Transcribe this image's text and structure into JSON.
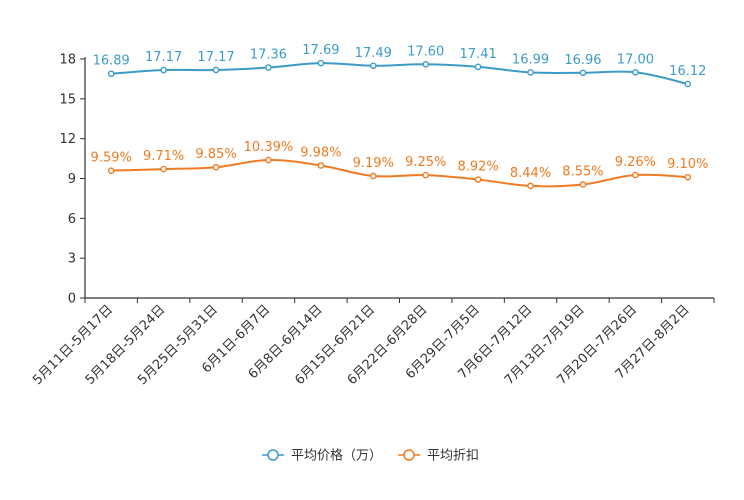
{
  "chart_data": {
    "type": "line",
    "title": "",
    "xlabel": "",
    "ylabel": "",
    "ylim": [
      0,
      18
    ],
    "yticks": [
      0,
      3,
      6,
      9,
      12,
      15,
      18
    ],
    "grid": false,
    "legend": "bottom-center",
    "categories": [
      "5月11日-5月17日",
      "5月18日-5月24日",
      "5月25日-5月31日",
      "6月1日-6月7日",
      "6月8日-6月14日",
      "6月15日-6月21日",
      "6月22日-6月28日",
      "6月29日-7月5日",
      "7月6日-7月12日",
      "7月13日-7月19日",
      "7月20日-7月26日",
      "7月27日-8月2日"
    ],
    "series": [
      {
        "name": "平均价格（万）",
        "color": "#3d9bc8",
        "values": [
          16.89,
          17.17,
          17.17,
          17.36,
          17.69,
          17.49,
          17.6,
          17.41,
          16.99,
          16.96,
          17.0,
          16.12
        ],
        "labels": [
          "16.89",
          "17.17",
          "17.17",
          "17.36",
          "17.69",
          "17.49",
          "17.60",
          "17.41",
          "16.99",
          "16.96",
          "17.00",
          "16.12"
        ]
      },
      {
        "name": "平均折扣",
        "color": "#f07b22",
        "values": [
          9.59,
          9.71,
          9.85,
          10.39,
          9.98,
          9.19,
          9.25,
          8.92,
          8.44,
          8.55,
          9.26,
          9.1
        ],
        "labels": [
          "9.59%",
          "9.71%",
          "9.85%",
          "10.39%",
          "9.98%",
          "9.19%",
          "9.25%",
          "8.92%",
          "8.44%",
          "8.55%",
          "9.26%",
          "9.10%"
        ]
      }
    ]
  }
}
